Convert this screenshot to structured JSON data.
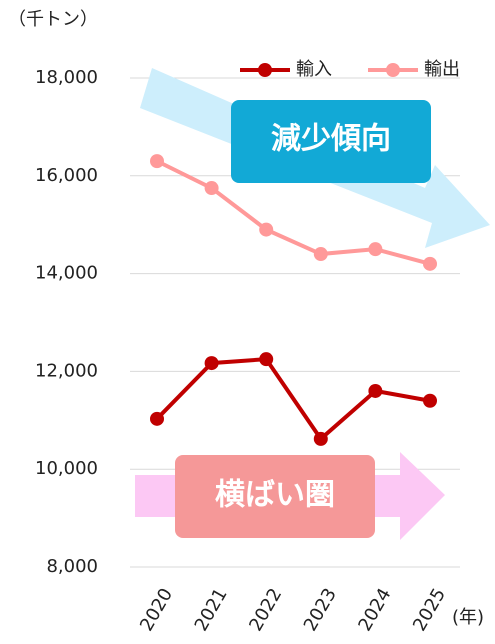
{
  "chart_data": {
    "type": "line",
    "y_unit_label": "（千トン）",
    "x_unit_label": "(年)",
    "categories": [
      "2020",
      "2021",
      "2022",
      "2023",
      "2024",
      "2025"
    ],
    "series": [
      {
        "name": "輸入",
        "color": "#c00000",
        "values": [
          11030,
          12170,
          12250,
          10620,
          11600,
          11400
        ]
      },
      {
        "name": "輸出",
        "color": "#ff9999",
        "values": [
          16300,
          15750,
          14900,
          14400,
          14500,
          14200
        ]
      }
    ],
    "ylim": [
      8000,
      18000
    ],
    "yticks": [
      {
        "value": 8000,
        "label": "8,000"
      },
      {
        "value": 10000,
        "label": "10,000"
      },
      {
        "value": 12000,
        "label": "12,000"
      },
      {
        "value": 14000,
        "label": "14,000"
      },
      {
        "value": 16000,
        "label": "16,000"
      },
      {
        "value": 18000,
        "label": "18,000"
      }
    ],
    "grid": true,
    "annotations": [
      "減少傾向",
      "横ばい圏"
    ]
  }
}
